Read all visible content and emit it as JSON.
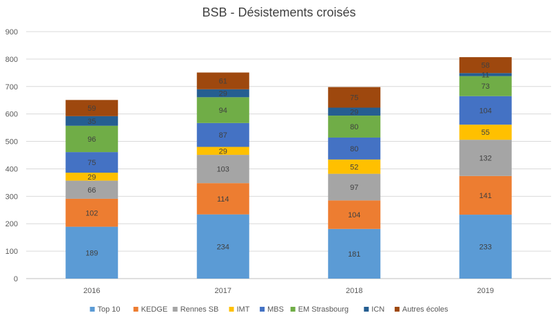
{
  "chart_data": {
    "type": "bar",
    "stacked": true,
    "title": "BSB - Désistements croisés",
    "xlabel": "",
    "ylabel": "",
    "categories": [
      "2016",
      "2017",
      "2018",
      "2019"
    ],
    "ylim": [
      0,
      900
    ],
    "yticks": [
      0,
      100,
      200,
      300,
      400,
      500,
      600,
      700,
      800,
      900
    ],
    "grid": true,
    "legend_position": "bottom",
    "series": [
      {
        "name": "Top 10",
        "color": "#5B9BD5",
        "values": [
          189,
          234,
          181,
          233
        ]
      },
      {
        "name": "KEDGE",
        "color": "#ED7D31",
        "values": [
          102,
          114,
          104,
          141
        ]
      },
      {
        "name": "Rennes SB",
        "color": "#A5A5A5",
        "values": [
          66,
          103,
          97,
          132
        ]
      },
      {
        "name": "IMT",
        "color": "#FFC000",
        "values": [
          29,
          29,
          52,
          55
        ]
      },
      {
        "name": "MBS",
        "color": "#4472C4",
        "values": [
          75,
          87,
          80,
          104
        ]
      },
      {
        "name": "EM Strasbourg",
        "color": "#70AD47",
        "values": [
          96,
          94,
          80,
          73
        ]
      },
      {
        "name": "ICN",
        "color": "#255E91",
        "values": [
          35,
          29,
          29,
          11
        ]
      },
      {
        "name": "Autres écoles",
        "color": "#9E480E",
        "values": [
          59,
          61,
          75,
          58
        ]
      }
    ]
  }
}
